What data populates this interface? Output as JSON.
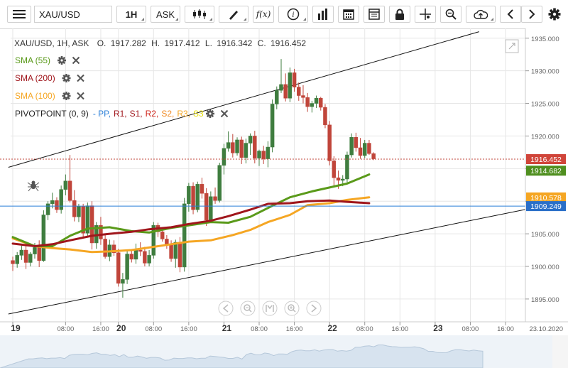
{
  "toolbar": {
    "symbol": "XAU/USD",
    "timeframe": "1H",
    "price_type": "ASK",
    "fx_label": "f(x)",
    "icons": [
      "menu-icon",
      "candles-icon",
      "draw-icon",
      "function-icon",
      "info-icon",
      "volume-bars-icon",
      "calendar-icon",
      "lock-icon",
      "crosshair-icon",
      "zoom-icon",
      "cloud-upload-icon",
      "arrow-left-icon",
      "arrow-right-icon",
      "settings-icon"
    ]
  },
  "legend": {
    "symbol_line": "XAU/USD, 1H, ASK",
    "open_label": "O.",
    "open": "1917.282",
    "high_label": "H.",
    "high": "1917.412",
    "low_label": "L.",
    "low": "1916.342",
    "close_label": "C.",
    "close": "1916.452",
    "indicators": [
      {
        "label": "SMA (55)",
        "color": "#5a9a1a"
      },
      {
        "label": "SMA (200)",
        "color": "#a0161c"
      },
      {
        "label": "SMA (100)",
        "color": "#f5a623"
      }
    ],
    "pivot": {
      "label": "PIVOTPOINT (0, 9)",
      "parts": [
        {
          "text": "- PP,",
          "color": "#2a7fd8"
        },
        {
          "text": "R1,",
          "color": "#a0161c"
        },
        {
          "text": "S1,",
          "color": "#a0161c"
        },
        {
          "text": "R2,",
          "color": "#d0261c"
        },
        {
          "text": "S2,",
          "color": "#f08a24"
        },
        {
          "text": "R3,",
          "color": "#f5a623"
        },
        {
          "text": "S3",
          "color": "#e8e010"
        }
      ]
    }
  },
  "colors": {
    "up": "#3f7d3f",
    "down": "#c0453a",
    "grid": "#e6e6e6",
    "pp_line": "#2a7fd8"
  },
  "price_tags": [
    {
      "value": "1916.452",
      "bg": "#d0453a"
    },
    {
      "value": "1914.682",
      "bg": "#4f8f1f"
    },
    {
      "value": "1910.578",
      "bg": "#f5a623"
    },
    {
      "value": "1909.249",
      "bg": "#2a6fc8"
    }
  ],
  "date_label": "23.10.2020",
  "chart_data": {
    "type": "candlestick",
    "y_axis": {
      "ticks": [
        1895,
        1900,
        1905,
        1910,
        1915,
        1920,
        1925,
        1930,
        1935
      ],
      "tick_labels": [
        "1895.000",
        "1900.000",
        "1905.000",
        "1910.000",
        "1915.000",
        "1920.000",
        "1925.000",
        "1930.000",
        "1935.000"
      ],
      "range": [
        1891.5,
        1936.5
      ]
    },
    "x_axis": {
      "ticks": [
        {
          "t": 0,
          "label": "19"
        },
        {
          "t": 12,
          "label": "08:00"
        },
        {
          "t": 20,
          "label": "16:00"
        },
        {
          "t": 24,
          "label": "20"
        },
        {
          "t": 32,
          "label": "08:00"
        },
        {
          "t": 40,
          "label": "16:00"
        },
        {
          "t": 48,
          "label": "21"
        },
        {
          "t": 56,
          "label": "08:00"
        },
        {
          "t": 64,
          "label": "16:00"
        },
        {
          "t": 72,
          "label": "22"
        },
        {
          "t": 80,
          "label": "08:00"
        },
        {
          "t": 88,
          "label": "16:00"
        },
        {
          "t": 96,
          "label": "23"
        },
        {
          "t": 104,
          "label": "08:00"
        },
        {
          "t": 112,
          "label": "16:00"
        }
      ],
      "range": [
        0,
        117
      ]
    },
    "candles": [
      [
        1900.9,
        1901.5,
        1899.3,
        1900.4
      ],
      [
        1900.4,
        1902.2,
        1899.8,
        1901.7
      ],
      [
        1901.7,
        1903.2,
        1901.0,
        1902.5
      ],
      [
        1902.5,
        1903.8,
        1899.6,
        1900.6
      ],
      [
        1900.6,
        1902.2,
        1900.0,
        1901.9
      ],
      [
        1901.9,
        1903.6,
        1901.2,
        1902.9
      ],
      [
        1902.9,
        1904.0,
        1899.9,
        1900.9
      ],
      [
        1900.9,
        1908.6,
        1900.7,
        1907.9
      ],
      [
        1907.9,
        1910.0,
        1907.1,
        1909.6
      ],
      [
        1909.6,
        1911.3,
        1908.9,
        1910.1
      ],
      [
        1910.1,
        1910.6,
        1908.2,
        1908.7
      ],
      [
        1908.7,
        1912.4,
        1908.1,
        1911.8
      ],
      [
        1911.8,
        1914.1,
        1910.9,
        1913.1
      ],
      [
        1913.1,
        1917.1,
        1909.8,
        1910.1
      ],
      [
        1910.1,
        1911.7,
        1906.9,
        1907.6
      ],
      [
        1907.6,
        1909.6,
        1906.8,
        1909.2
      ],
      [
        1909.2,
        1909.6,
        1904.3,
        1905.1
      ],
      [
        1905.1,
        1909.8,
        1904.7,
        1909.3
      ],
      [
        1909.3,
        1910.0,
        1902.6,
        1903.6
      ],
      [
        1903.6,
        1906.8,
        1902.7,
        1906.3
      ],
      [
        1906.3,
        1907.6,
        1903.3,
        1904.2
      ],
      [
        1904.2,
        1904.9,
        1901.2,
        1901.5
      ],
      [
        1901.5,
        1904.1,
        1900.8,
        1903.3
      ],
      [
        1903.3,
        1904.0,
        1901.6,
        1902.1
      ],
      [
        1902.1,
        1902.7,
        1896.9,
        1897.4
      ],
      [
        1897.4,
        1899.0,
        1895.2,
        1898.0
      ],
      [
        1898.0,
        1902.6,
        1897.3,
        1901.9
      ],
      [
        1901.9,
        1902.6,
        1900.6,
        1901.1
      ],
      [
        1901.1,
        1903.5,
        1900.4,
        1902.5
      ],
      [
        1902.5,
        1903.7,
        1901.6,
        1902.3
      ],
      [
        1902.3,
        1903.0,
        1900.0,
        1900.5
      ],
      [
        1900.5,
        1902.5,
        1900.0,
        1901.7
      ],
      [
        1901.7,
        1906.8,
        1901.2,
        1906.3
      ],
      [
        1906.3,
        1906.7,
        1904.5,
        1905.3
      ],
      [
        1905.3,
        1905.7,
        1903.8,
        1904.2
      ],
      [
        1904.2,
        1904.8,
        1902.7,
        1903.4
      ],
      [
        1903.4,
        1904.0,
        1900.7,
        1901.2
      ],
      [
        1901.2,
        1904.1,
        1899.8,
        1903.7
      ],
      [
        1903.7,
        1904.5,
        1899.1,
        1899.9
      ],
      [
        1899.9,
        1910.5,
        1899.2,
        1909.6
      ],
      [
        1909.6,
        1912.8,
        1908.4,
        1912.3
      ],
      [
        1912.3,
        1912.9,
        1908.0,
        1908.7
      ],
      [
        1908.7,
        1913.0,
        1908.3,
        1912.6
      ],
      [
        1912.6,
        1913.6,
        1910.4,
        1911.2
      ],
      [
        1911.2,
        1912.0,
        1906.2,
        1907.1
      ],
      [
        1907.1,
        1911.5,
        1906.8,
        1910.7
      ],
      [
        1910.7,
        1912.1,
        1909.6,
        1910.1
      ],
      [
        1910.1,
        1915.9,
        1909.8,
        1915.5
      ],
      [
        1915.5,
        1918.8,
        1914.1,
        1918.1
      ],
      [
        1918.1,
        1920.7,
        1917.6,
        1919.0
      ],
      [
        1919.0,
        1920.3,
        1916.7,
        1917.4
      ],
      [
        1917.4,
        1919.8,
        1917.0,
        1919.4
      ],
      [
        1919.4,
        1919.9,
        1915.7,
        1916.7
      ],
      [
        1916.7,
        1919.6,
        1915.8,
        1918.9
      ],
      [
        1918.9,
        1920.4,
        1917.1,
        1920.0
      ],
      [
        1920.0,
        1920.8,
        1915.8,
        1916.6
      ],
      [
        1916.6,
        1917.9,
        1915.4,
        1917.7
      ],
      [
        1917.7,
        1918.5,
        1915.7,
        1916.5
      ],
      [
        1916.5,
        1919.2,
        1915.2,
        1918.3
      ],
      [
        1918.3,
        1925.6,
        1917.5,
        1924.9
      ],
      [
        1924.9,
        1927.6,
        1924.1,
        1927.0
      ],
      [
        1927.0,
        1931.8,
        1926.6,
        1927.9
      ],
      [
        1927.9,
        1929.6,
        1925.3,
        1925.8
      ],
      [
        1925.8,
        1930.5,
        1925.2,
        1929.7
      ],
      [
        1929.7,
        1930.3,
        1926.8,
        1927.5
      ],
      [
        1927.5,
        1928.2,
        1925.4,
        1926.2
      ],
      [
        1926.2,
        1927.8,
        1925.0,
        1925.9
      ],
      [
        1925.9,
        1926.6,
        1923.7,
        1924.5
      ],
      [
        1924.5,
        1925.4,
        1923.6,
        1925.0
      ],
      [
        1925.0,
        1926.2,
        1924.3,
        1925.8
      ],
      [
        1925.8,
        1926.0,
        1923.9,
        1924.4
      ],
      [
        1924.4,
        1924.9,
        1921.2,
        1921.7
      ],
      [
        1921.7,
        1922.3,
        1915.5,
        1916.2
      ],
      [
        1916.2,
        1916.9,
        1912.3,
        1913.6
      ],
      [
        1913.6,
        1914.7,
        1911.9,
        1913.2
      ],
      [
        1913.2,
        1914.0,
        1912.3,
        1913.4
      ],
      [
        1913.4,
        1917.6,
        1912.9,
        1917.1
      ],
      [
        1917.1,
        1920.4,
        1916.7,
        1919.8
      ],
      [
        1919.8,
        1920.5,
        1917.6,
        1918.2
      ],
      [
        1918.2,
        1919.7,
        1916.5,
        1917.0
      ],
      [
        1917.0,
        1919.4,
        1916.6,
        1918.9
      ],
      [
        1918.9,
        1919.4,
        1917.1,
        1917.3
      ],
      [
        1917.3,
        1917.5,
        1916.3,
        1916.5
      ]
    ],
    "sma_55": [
      [
        0,
        1904.5
      ],
      [
        5,
        1903.1
      ],
      [
        9,
        1903.1
      ],
      [
        13,
        1904.7
      ],
      [
        17,
        1905.8
      ],
      [
        22,
        1906.0
      ],
      [
        27,
        1905.4
      ],
      [
        31,
        1905.2
      ],
      [
        36,
        1905.9
      ],
      [
        41,
        1906.4
      ],
      [
        45,
        1906.8
      ],
      [
        49,
        1906.7
      ],
      [
        54,
        1907.6
      ],
      [
        59,
        1909.3
      ],
      [
        63,
        1910.6
      ],
      [
        68,
        1911.5
      ],
      [
        72,
        1912.1
      ],
      [
        76,
        1912.7
      ],
      [
        81,
        1914.1
      ]
    ],
    "sma_200": [
      [
        0,
        1903.5
      ],
      [
        5,
        1903.1
      ],
      [
        9,
        1903.4
      ],
      [
        13,
        1904.0
      ],
      [
        18,
        1904.7
      ],
      [
        22,
        1905.0
      ],
      [
        27,
        1905.3
      ],
      [
        31,
        1905.7
      ],
      [
        36,
        1906.0
      ],
      [
        40,
        1906.5
      ],
      [
        45,
        1907.0
      ],
      [
        49,
        1907.7
      ],
      [
        54,
        1908.7
      ],
      [
        58,
        1909.6
      ],
      [
        63,
        1909.7
      ],
      [
        67,
        1910.0
      ],
      [
        72,
        1910.1
      ],
      [
        76,
        1909.9
      ],
      [
        81,
        1909.7
      ]
    ],
    "sma_100": [
      [
        0,
        1904.3
      ],
      [
        5,
        1903.1
      ],
      [
        9,
        1902.8
      ],
      [
        13,
        1902.6
      ],
      [
        18,
        1902.2
      ],
      [
        22,
        1902.3
      ],
      [
        27,
        1902.5
      ],
      [
        31,
        1902.9
      ],
      [
        36,
        1903.4
      ],
      [
        40,
        1903.8
      ],
      [
        45,
        1904.0
      ],
      [
        50,
        1904.8
      ],
      [
        54,
        1905.6
      ],
      [
        58,
        1906.8
      ],
      [
        63,
        1907.9
      ],
      [
        67,
        1909.4
      ],
      [
        72,
        1909.7
      ],
      [
        76,
        1910.2
      ],
      [
        81,
        1910.6
      ]
    ],
    "channel_upper": [
      [
        -1,
        1915.2
      ],
      [
        106,
        1936.0
      ]
    ],
    "channel_lower": [
      [
        -1,
        1892.7
      ],
      [
        117,
        1908.8
      ]
    ],
    "pivot_pp": 1909.249,
    "last_price_line": 1916.452
  }
}
